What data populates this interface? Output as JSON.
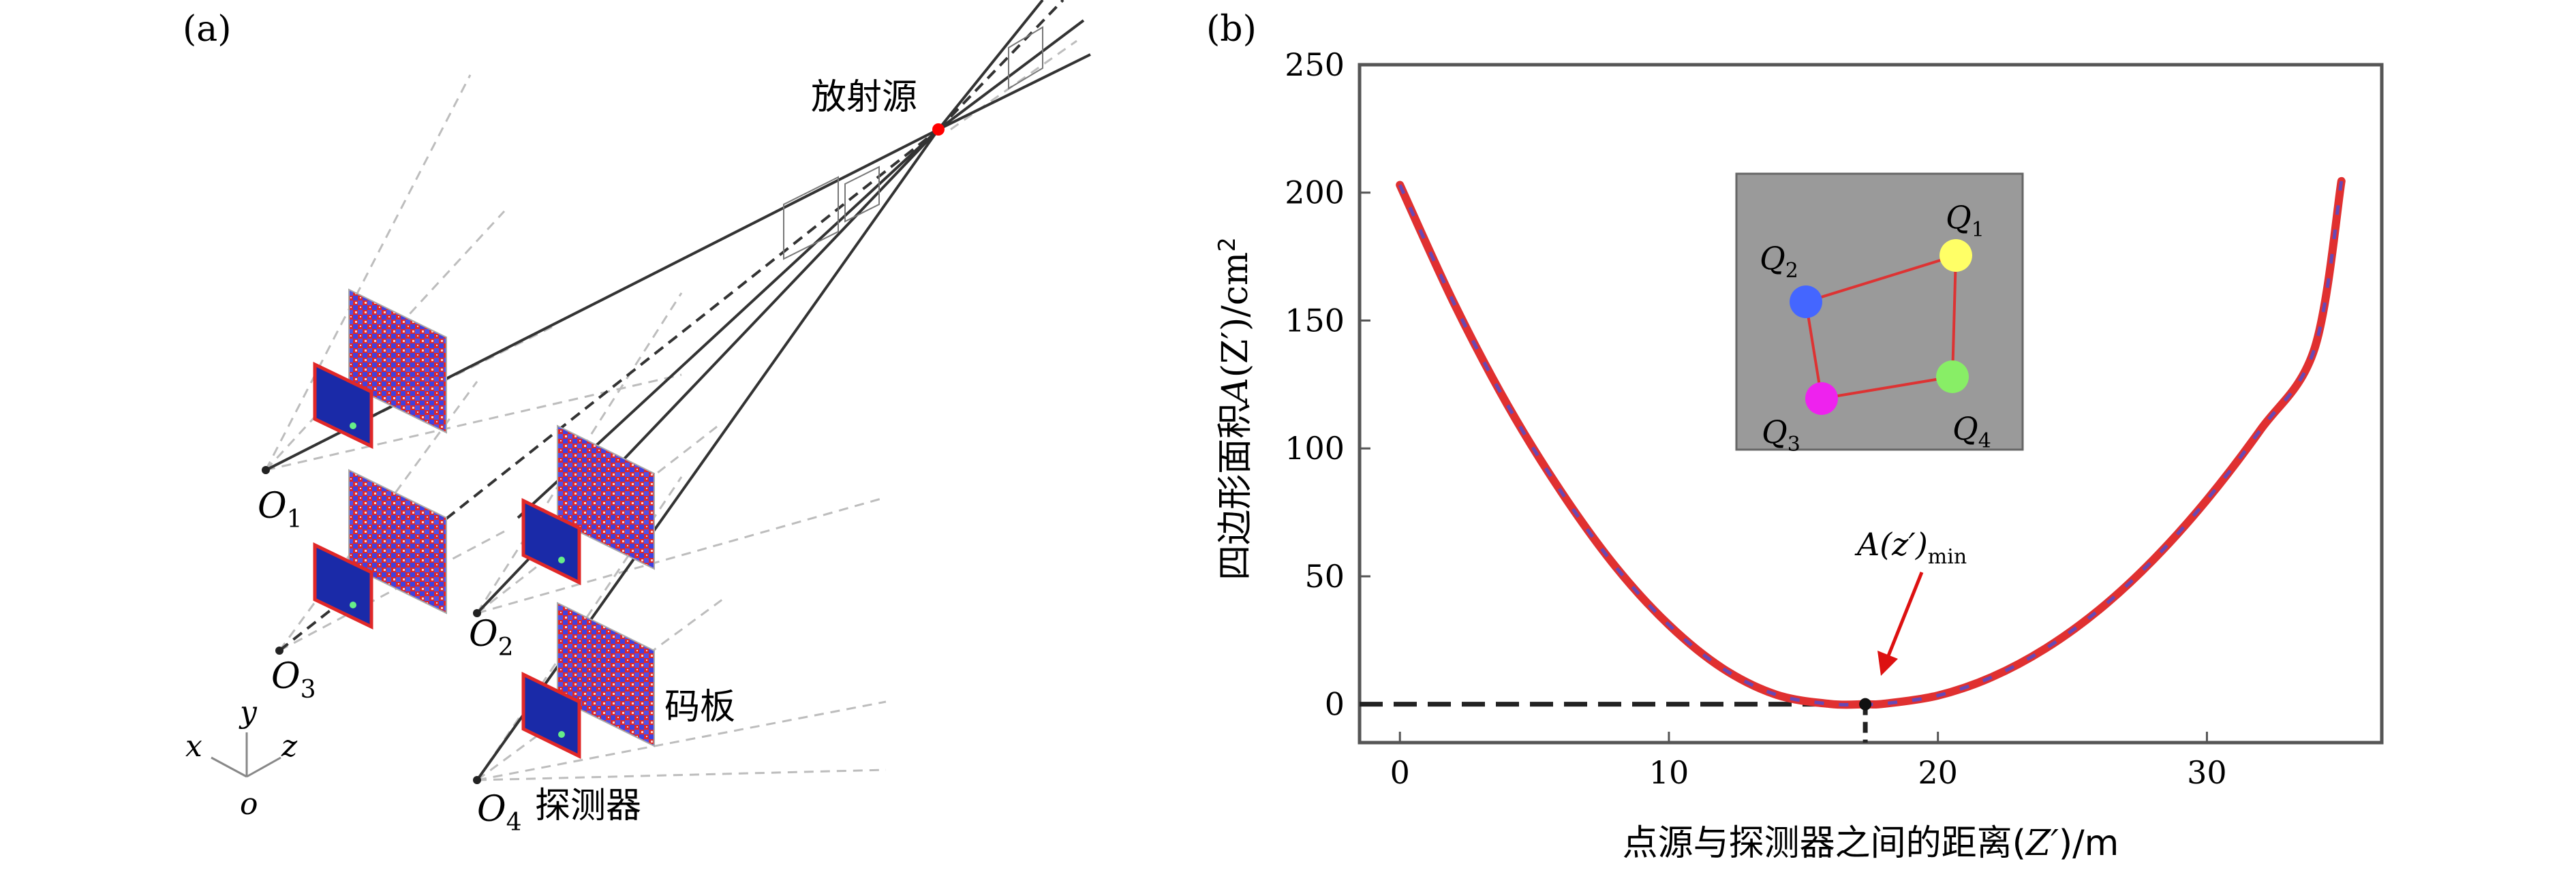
{
  "panel_a": {
    "label": "(a)",
    "source_label": "放射源",
    "mask_label": "码板",
    "detector_label": "探测器",
    "stations": [
      {
        "base": "O",
        "sub": "1"
      },
      {
        "base": "O",
        "sub": "2"
      },
      {
        "base": "O",
        "sub": "3"
      },
      {
        "base": "O",
        "sub": "4"
      }
    ],
    "axes": {
      "x": "x",
      "y": "y",
      "z": "z",
      "origin": "o"
    },
    "colors": {
      "line": "#333333",
      "dashed": "#bbbbbb",
      "mask_red": "#e02828",
      "mask_blue": "#4040e0",
      "detector": "#1a2aa8",
      "source": "#ff0000"
    }
  },
  "panel_b": {
    "label": "(b)",
    "chart_data": {
      "type": "line",
      "title": "",
      "xlabel_prefix": "点源与探测器之间的距离(",
      "xlabel_var": "Z′",
      "xlabel_suffix": ")/m",
      "ylabel_prefix": "四边形面积",
      "ylabel_var": "A",
      "ylabel_mid": "(Z′)/cm",
      "ylabel_sup": "2",
      "xlim": [
        -1.5,
        36.5
      ],
      "ylim": [
        -15,
        250
      ],
      "xticks": [
        0,
        10,
        20,
        30
      ],
      "xtick_labels": [
        "0",
        "10",
        "20",
        "30"
      ],
      "yticks": [
        0,
        50,
        100,
        150,
        200,
        250
      ],
      "ytick_labels": [
        "0",
        "50",
        "100",
        "150",
        "200",
        "250"
      ],
      "grid": false,
      "series": [
        {
          "x": [
            0,
            2,
            4,
            6,
            8,
            10,
            12,
            14,
            16,
            17.3,
            18,
            20,
            22,
            24,
            26,
            28,
            30,
            32,
            34,
            35
          ],
          "y": [
            203,
            157,
            117,
            83,
            54,
            31,
            14,
            3.7,
            0.1,
            0,
            0.2,
            3.4,
            10.6,
            21.8,
            37,
            56.4,
            79.9,
            107.4,
            139,
            204.5
          ],
          "color": "#e03030",
          "dash_color": "#4050e0"
        }
      ],
      "minimum": {
        "x": 17.3,
        "y": 0
      },
      "annotation": {
        "prefix": "A(z′)",
        "sub": "min"
      },
      "inset": {
        "points": [
          {
            "label": "Q",
            "sub": "1",
            "color": "#ffff66"
          },
          {
            "label": "Q",
            "sub": "2",
            "color": "#4466ff"
          },
          {
            "label": "Q",
            "sub": "3",
            "color": "#ee22ee"
          },
          {
            "label": "Q",
            "sub": "4",
            "color": "#88ee66"
          }
        ],
        "background": "#9a9a9a",
        "edge_color": "#dd3333"
      }
    }
  }
}
